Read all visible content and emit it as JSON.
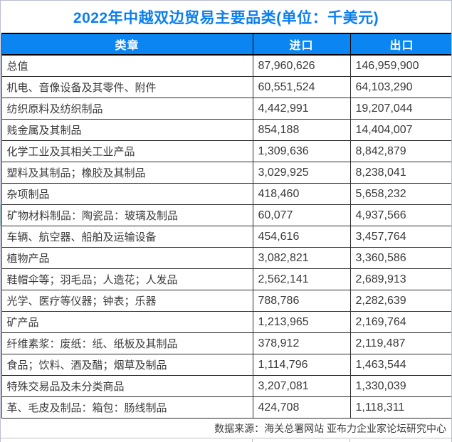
{
  "title": "2022年中越双边贸易主要品类(单位：千美元)",
  "colors": {
    "title_text": "#0a7ef0",
    "header_bg": "#0a85f2",
    "header_text": "#ffffff",
    "body_text": "#3a3a3a",
    "row_border": "#2b2b2b",
    "highlight_border": "#21a366"
  },
  "table": {
    "columns": [
      "类章",
      "进口",
      "出口"
    ],
    "highlight_row_index": 7,
    "rows": [
      [
        "总值",
        "87,960,626",
        "146,959,900"
      ],
      [
        "机电、音像设备及其零件、附件",
        "60,551,524",
        "64,103,290"
      ],
      [
        "纺织原料及纺织制品",
        "4,442,991",
        "19,207,044"
      ],
      [
        "贱金属及其制品",
        "854,188",
        "14,404,007"
      ],
      [
        "化学工业及其相关工业产品",
        "1,309,636",
        "8,842,879"
      ],
      [
        "塑料及其制品；橡胶及其制品",
        "3,029,925",
        "8,238,041"
      ],
      [
        "杂项制品",
        "418,460",
        "5,658,232"
      ],
      [
        "矿物材料制品：陶瓷品：玻璃及制品",
        "60,077",
        "4,937,566"
      ],
      [
        "车辆、航空器、船舶及运输设备",
        "454,616",
        "3,457,764"
      ],
      [
        "植物产品",
        "3,082,821",
        "3,360,586"
      ],
      [
        "鞋帽伞等；羽毛品；人造花；人发品",
        "2,562,141",
        "2,689,913"
      ],
      [
        "光学、医疗等仪器；钟表；乐器",
        "788,786",
        "2,282,639"
      ],
      [
        "矿产品",
        "1,213,965",
        "2,169,764"
      ],
      [
        "纤维素浆：废纸：纸、纸板及其制品",
        "378,912",
        "2,119,487"
      ],
      [
        "食品；饮料、酒及醋；烟草及制品",
        "1,114,796",
        "1,463,544"
      ],
      [
        "特殊交易品及未分类商品",
        "3,207,081",
        "1,330,039"
      ],
      [
        "革、毛皮及制品：箱包：肠线制品",
        "424,708",
        "1,118,311"
      ]
    ]
  },
  "footer": {
    "source": "数据来源：海关总署网站 亚布力企业家论坛研究中心"
  },
  "chart_data": {
    "type": "table",
    "title": "2022年中越双边贸易主要品类(单位：千美元)",
    "unit": "千美元",
    "columns": [
      "类章",
      "进口",
      "出口"
    ],
    "rows": [
      {
        "category": "总值",
        "import": 87960626,
        "export": 146959900
      },
      {
        "category": "机电、音像设备及其零件、附件",
        "import": 60551524,
        "export": 64103290
      },
      {
        "category": "纺织原料及纺织制品",
        "import": 4442991,
        "export": 19207044
      },
      {
        "category": "贱金属及其制品",
        "import": 854188,
        "export": 14404007
      },
      {
        "category": "化学工业及其相关工业产品",
        "import": 1309636,
        "export": 8842879
      },
      {
        "category": "塑料及其制品；橡胶及其制品",
        "import": 3029925,
        "export": 8238041
      },
      {
        "category": "杂项制品",
        "import": 418460,
        "export": 5658232
      },
      {
        "category": "矿物材料制品：陶瓷品：玻璃及制品",
        "import": 60077,
        "export": 4937566
      },
      {
        "category": "车辆、航空器、船舶及运输设备",
        "import": 454616,
        "export": 3457764
      },
      {
        "category": "植物产品",
        "import": 3082821,
        "export": 3360586
      },
      {
        "category": "鞋帽伞等；羽毛品；人造花；人发品",
        "import": 2562141,
        "export": 2689913
      },
      {
        "category": "光学、医疗等仪器；钟表；乐器",
        "import": 788786,
        "export": 2282639
      },
      {
        "category": "矿产品",
        "import": 1213965,
        "export": 2169764
      },
      {
        "category": "纤维素浆：废纸：纸、纸板及其制品",
        "import": 378912,
        "export": 2119487
      },
      {
        "category": "食品；饮料、酒及醋；烟草及制品",
        "import": 1114796,
        "export": 1463544
      },
      {
        "category": "特殊交易品及未分类商品",
        "import": 3207081,
        "export": 1330039
      },
      {
        "category": "革、毛皮及制品：箱包：肠线制品",
        "import": 424708,
        "export": 1118311
      }
    ],
    "source": "数据来源：海关总署网站 亚布力企业家论坛研究中心"
  }
}
